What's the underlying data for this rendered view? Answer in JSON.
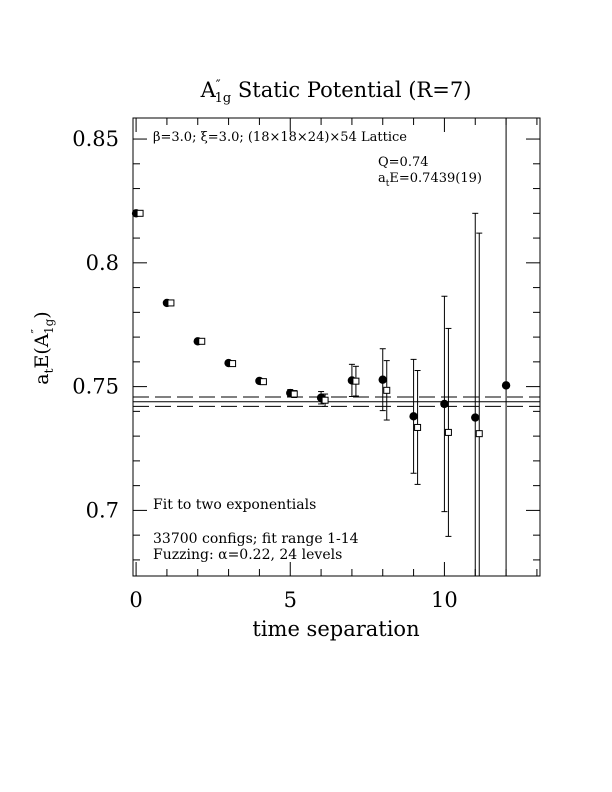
{
  "chart_data": {
    "type": "scatter",
    "title_main": "A",
    "title_sup": "″",
    "title_sub": "1g",
    "title_rest": " Static Potential (R=7)",
    "xlabel": "time separation",
    "ylabel_main": "a",
    "ylabel_t": "t",
    "ylabel_rest": "E(A",
    "ylabel_sup": "″",
    "ylabel_sub": "1g",
    "ylabel_end": ")",
    "xlim": [
      -0.1,
      13.1
    ],
    "ylim": [
      0.6735,
      0.8585
    ],
    "x_ticks": [
      0,
      5,
      10
    ],
    "y_ticks": [
      0.7,
      0.75,
      0.8,
      0.85
    ],
    "x_tick_labels": [
      "0",
      "5",
      "10"
    ],
    "y_tick_labels": [
      "0.7",
      "0.75",
      "0.8",
      "0.85"
    ],
    "x_minor_step": 1,
    "y_minor_step": 0.01,
    "annotations": {
      "lattice_beta": "β",
      "lattice_rest": "=3.0; ",
      "lattice_xi": "ξ",
      "lattice_rest2": "=3.0; (18×18×24)×54 Lattice",
      "q_value": "Q=0.74",
      "energy_a": "a",
      "energy_t": "t",
      "energy_rest": "E=0.7439(19)",
      "fit_label": "Fit to two exponentials",
      "configs": "33700 configs; fit range 1-14",
      "fuzzing_prefix": "Fuzzing: ",
      "fuzzing_alpha": "α",
      "fuzzing_rest": "=0.22, 24 levels"
    },
    "fit": {
      "center": 0.7439,
      "lower": 0.742,
      "upper": 0.7458,
      "x_range": [
        -0.1,
        13.1
      ]
    },
    "series": [
      {
        "marker": "filled-circle",
        "points": [
          {
            "x": 0,
            "y": 0.82,
            "err": 0.0006
          },
          {
            "x": 1,
            "y": 0.7838,
            "err": 0.0006
          },
          {
            "x": 2,
            "y": 0.7683,
            "err": 0.0007
          },
          {
            "x": 3,
            "y": 0.7595,
            "err": 0.0008
          },
          {
            "x": 4,
            "y": 0.7523,
            "err": 0.001
          },
          {
            "x": 5,
            "y": 0.7474,
            "err": 0.0014
          },
          {
            "x": 6,
            "y": 0.7455,
            "err": 0.0025
          },
          {
            "x": 7,
            "y": 0.7525,
            "err": 0.0065
          },
          {
            "x": 8,
            "y": 0.7528,
            "err": 0.0125
          },
          {
            "x": 9,
            "y": 0.738,
            "err": 0.023
          },
          {
            "x": 10,
            "y": 0.743,
            "err": 0.0435
          },
          {
            "x": 11,
            "y": 0.7375,
            "err": 0.0825
          },
          {
            "x": 12,
            "y": 0.7505,
            "err": 0.17
          }
        ]
      },
      {
        "marker": "open-square",
        "points": [
          {
            "x": 0,
            "y": 0.82,
            "err": 0.0006
          },
          {
            "x": 1,
            "y": 0.7838,
            "err": 0.0006
          },
          {
            "x": 2,
            "y": 0.7683,
            "err": 0.0007
          },
          {
            "x": 3,
            "y": 0.7593,
            "err": 0.0008
          },
          {
            "x": 4,
            "y": 0.752,
            "err": 0.001
          },
          {
            "x": 5,
            "y": 0.747,
            "err": 0.0014
          },
          {
            "x": 6,
            "y": 0.7445,
            "err": 0.0025
          },
          {
            "x": 7,
            "y": 0.7522,
            "err": 0.006
          },
          {
            "x": 8,
            "y": 0.7485,
            "err": 0.012
          },
          {
            "x": 9,
            "y": 0.7335,
            "err": 0.023
          },
          {
            "x": 10,
            "y": 0.7315,
            "err": 0.042
          },
          {
            "x": 11,
            "y": 0.731,
            "err": 0.081
          }
        ]
      }
    ]
  }
}
